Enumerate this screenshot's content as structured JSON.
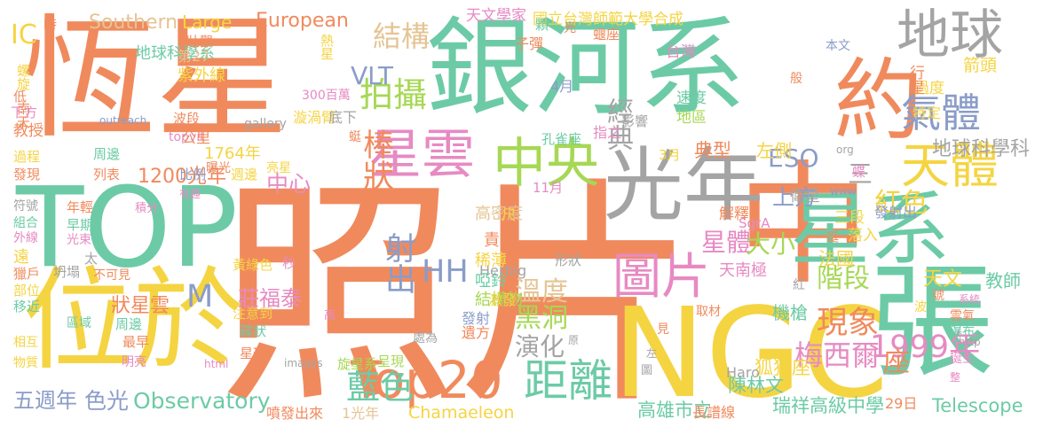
{
  "words": [
    {
      "text": "恆星",
      "color": "o"
    },
    {
      "text": "照片",
      "color": "o"
    },
    {
      "text": "TOP",
      "color": "t"
    },
    {
      "text": "銀河系",
      "color": "t"
    },
    {
      "text": "中",
      "color": "o"
    },
    {
      "text": "NGC",
      "color": "y"
    },
    {
      "text": "張",
      "color": "t"
    },
    {
      "text": "位於",
      "color": "y"
    },
    {
      "text": "約",
      "color": "o"
    },
    {
      "text": "地球",
      "color": "g"
    },
    {
      "text": "光年",
      "color": "g"
    },
    {
      "text": "星系",
      "color": "t"
    },
    {
      "text": "Top20",
      "color": "o"
    },
    {
      "text": "星雲",
      "color": "k"
    },
    {
      "text": "中央",
      "color": "l"
    },
    {
      "text": "天體",
      "color": "y"
    },
    {
      "text": "氣體",
      "color": "b"
    },
    {
      "text": "圖片",
      "color": "k"
    },
    {
      "text": "距離",
      "color": "t"
    },
    {
      "text": "拍攝",
      "color": "l"
    },
    {
      "text": "1999年",
      "color": "k"
    },
    {
      "text": "藍色",
      "color": "t"
    },
    {
      "text": "結構",
      "color": "s"
    },
    {
      "text": "梅西爾",
      "color": "k"
    },
    {
      "text": "棒狀",
      "color": "o"
    },
    {
      "text": "射出",
      "color": "b"
    },
    {
      "text": "黑洞",
      "color": "l"
    },
    {
      "text": "演化",
      "color": "g"
    },
    {
      "text": "現象",
      "color": "o"
    },
    {
      "text": "溫度",
      "color": "s"
    },
    {
      "text": "紅色",
      "color": "y"
    },
    {
      "text": "階段",
      "color": "l"
    },
    {
      "text": "星體",
      "color": "k"
    },
    {
      "text": "大小",
      "color": "l"
    },
    {
      "text": "座",
      "color": "o"
    },
    {
      "text": "HH",
      "color": "b"
    },
    {
      "text": "M",
      "color": "b"
    },
    {
      "text": "VLT",
      "color": "b"
    },
    {
      "text": "ESO",
      "color": "b"
    },
    {
      "text": "三",
      "color": "g"
    },
    {
      "text": "中心",
      "color": "k"
    },
    {
      "text": "上方",
      "color": "b"
    },
    {
      "text": "地球科學科",
      "color": "g"
    },
    {
      "text": "Observatory",
      "color": "t"
    },
    {
      "text": "色光",
      "color": "b"
    },
    {
      "text": "五週年",
      "color": "b"
    },
    {
      "text": "經典",
      "color": "g"
    },
    {
      "text": "IC",
      "color": "y"
    },
    {
      "text": "Southern",
      "color": "s"
    },
    {
      "text": "Large",
      "color": "y"
    },
    {
      "text": "European",
      "color": "o"
    },
    {
      "text": "國立台灣師範大學合成",
      "color": "y"
    },
    {
      "text": "天文學家",
      "color": "k"
    },
    {
      "text": "地球科學系",
      "color": "t"
    },
    {
      "text": "1200光年",
      "color": "o"
    },
    {
      "text": "1764年",
      "color": "y"
    },
    {
      "text": "高雄市立",
      "color": "t"
    },
    {
      "text": "瑞祥高級中學",
      "color": "t"
    },
    {
      "text": "Telescope",
      "color": "t"
    },
    {
      "text": "天文",
      "color": "y"
    },
    {
      "text": "教師",
      "color": "t"
    },
    {
      "text": "陳林文",
      "color": "t"
    },
    {
      "text": "狐狸座",
      "color": "y"
    },
    {
      "text": "天南極",
      "color": "k"
    },
    {
      "text": "法國",
      "color": "y"
    },
    {
      "text": "機槍",
      "color": "t"
    },
    {
      "text": "莊福泰",
      "color": "k"
    },
    {
      "text": "狀星雲",
      "color": "o"
    },
    {
      "text": "結構物",
      "color": "l"
    },
    {
      "text": "啞鈴",
      "color": "t"
    },
    {
      "text": "發射",
      "color": "b"
    },
    {
      "text": "遺方",
      "color": "o"
    },
    {
      "text": "Chamaeleon",
      "color": "y"
    },
    {
      "text": "噴發出來",
      "color": "o"
    },
    {
      "text": "1光年",
      "color": "s"
    },
    {
      "text": "長譜線",
      "color": "o"
    },
    {
      "text": "29日",
      "color": "o"
    },
    {
      "text": "Herbig",
      "color": "g"
    },
    {
      "text": "Haro",
      "color": "g"
    },
    {
      "text": "SgrA",
      "color": "k"
    },
    {
      "text": "高密度",
      "color": "s"
    },
    {
      "text": "責任",
      "color": "o"
    },
    {
      "text": "稀薄",
      "color": "y"
    },
    {
      "text": "激發",
      "color": "y"
    },
    {
      "text": "形狀",
      "color": "g"
    },
    {
      "text": "解釋",
      "color": "o"
    },
    {
      "text": "典型",
      "color": "o"
    },
    {
      "text": "左側",
      "color": "y"
    },
    {
      "text": "發射出",
      "color": "b"
    },
    {
      "text": "衛星",
      "color": "g"
    },
    {
      "text": "特定",
      "color": "y"
    },
    {
      "text": "過度",
      "color": "y"
    },
    {
      "text": "箭頭",
      "color": "y"
    },
    {
      "text": "行星",
      "color": "o"
    },
    {
      "text": "台灣",
      "color": "k"
    },
    {
      "text": "本文",
      "color": "b"
    },
    {
      "text": "速度",
      "color": "t"
    },
    {
      "text": "地區",
      "color": "l"
    },
    {
      "text": "影響",
      "color": "g"
    },
    {
      "text": "指之",
      "color": "k"
    },
    {
      "text": "孔雀座",
      "color": "t"
    },
    {
      "text": "4月",
      "color": "b"
    },
    {
      "text": "3月",
      "color": "y"
    },
    {
      "text": "11月",
      "color": "k"
    },
    {
      "text": "子彈",
      "color": "o"
    },
    {
      "text": "顆",
      "color": "t"
    },
    {
      "text": "熱星",
      "color": "y"
    },
    {
      "text": "壯觀",
      "color": "o"
    },
    {
      "text": "時",
      "color": "o"
    },
    {
      "text": "螺旋",
      "color": "y"
    },
    {
      "text": "南天",
      "color": "o"
    },
    {
      "text": "低",
      "color": "o"
    },
    {
      "text": "下方",
      "color": "k"
    },
    {
      "text": "教授",
      "color": "o"
    },
    {
      "text": "第27",
      "color": "s"
    },
    {
      "text": "紫外線",
      "color": "y"
    },
    {
      "text": "300百萬",
      "color": "k"
    },
    {
      "text": "波段",
      "color": "o"
    },
    {
      "text": "topvit",
      "color": "k"
    },
    {
      "text": "gallery",
      "color": "g"
    },
    {
      "text": "漩渦臂",
      "color": "y"
    },
    {
      "text": "底下",
      "color": "g"
    },
    {
      "text": "outreach",
      "color": "b"
    },
    {
      "text": "周邊",
      "color": "t"
    },
    {
      "text": "公里",
      "color": "o"
    },
    {
      "text": "過程",
      "color": "y"
    },
    {
      "text": "發現",
      "color": "o"
    },
    {
      "text": "比例",
      "color": "b"
    },
    {
      "text": "列表",
      "color": "o"
    },
    {
      "text": "曝光",
      "color": "o"
    },
    {
      "text": "週邊",
      "color": "y"
    },
    {
      "text": "亮星",
      "color": "y"
    },
    {
      "text": "有趣",
      "color": "k"
    },
    {
      "text": "積分",
      "color": "k"
    },
    {
      "text": "符號",
      "color": "g"
    },
    {
      "text": "組合",
      "color": "t"
    },
    {
      "text": "外線",
      "color": "k"
    },
    {
      "text": "年輕",
      "color": "o"
    },
    {
      "text": "早期",
      "color": "t"
    },
    {
      "text": "光束",
      "color": "k"
    },
    {
      "text": "遠",
      "color": "y"
    },
    {
      "text": "太",
      "color": "g"
    },
    {
      "text": "不可見",
      "color": "o"
    },
    {
      "text": "獵戶",
      "color": "o"
    },
    {
      "text": "部位",
      "color": "y"
    },
    {
      "text": "移近",
      "color": "t"
    },
    {
      "text": "坍塌",
      "color": "g"
    },
    {
      "text": "黃綠色",
      "color": "y"
    },
    {
      "text": "秒",
      "color": "k"
    },
    {
      "text": "注意到",
      "color": "y"
    },
    {
      "text": "碟狀",
      "color": "t"
    },
    {
      "text": "區域",
      "color": "t"
    },
    {
      "text": "周邊",
      "color": "t"
    },
    {
      "text": "最早",
      "color": "o"
    },
    {
      "text": "相互",
      "color": "y"
    },
    {
      "text": "物質",
      "color": "y"
    },
    {
      "text": "明亮",
      "color": "k"
    },
    {
      "text": "html",
      "color": "k"
    },
    {
      "text": "星球",
      "color": "o"
    },
    {
      "text": "images",
      "color": "g"
    },
    {
      "text": "旋星系",
      "color": "l"
    },
    {
      "text": "呈現",
      "color": "l"
    },
    {
      "text": "原",
      "color": "g"
    },
    {
      "text": "見",
      "color": "o"
    },
    {
      "text": "圖",
      "color": "g"
    },
    {
      "text": "取材",
      "color": "o"
    },
    {
      "text": "左",
      "color": "g"
    },
    {
      "text": "號",
      "color": "o"
    },
    {
      "text": "波",
      "color": "y"
    },
    {
      "text": "三段",
      "color": "y"
    },
    {
      "text": "落入",
      "color": "y"
    },
    {
      "text": "紅",
      "color": "g"
    },
    {
      "text": "系統",
      "color": "k"
    },
    {
      "text": "雲氣",
      "color": "o"
    },
    {
      "text": "瀑布",
      "color": "t"
    },
    {
      "text": "http",
      "color": "g"
    },
    {
      "text": "誕生",
      "color": "k"
    },
    {
      "text": "整",
      "color": "k"
    },
    {
      "text": "尺",
      "color": "y"
    },
    {
      "text": "處為",
      "color": "g"
    },
    {
      "text": "光",
      "color": "o"
    },
    {
      "text": "蝘座",
      "color": "o"
    },
    {
      "text": "般",
      "color": "o"
    },
    {
      "text": "org",
      "color": "g"
    },
    {
      "text": "www",
      "color": "b"
    },
    {
      "text": "蜓",
      "color": "o"
    },
    {
      "text": "蝶",
      "color": "k"
    },
    {
      "text": "高",
      "color": "k"
    },
    {
      "text": "蜓",
      "color": "o"
    }
  ]
}
